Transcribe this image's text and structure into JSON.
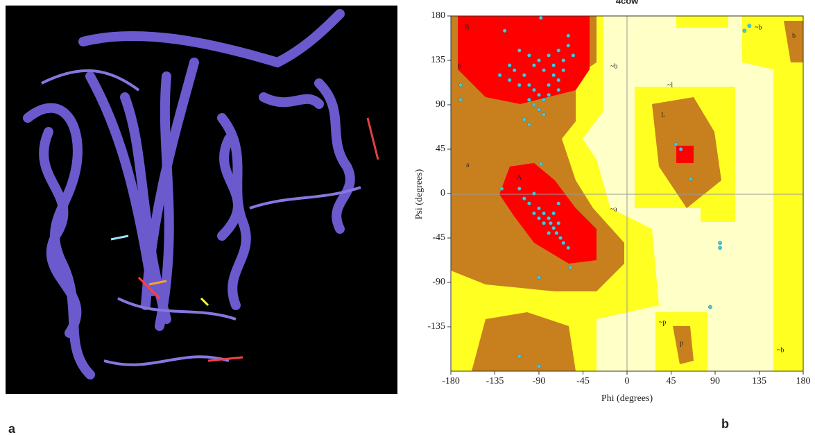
{
  "panels": [
    "a",
    "b"
  ],
  "chart_data": {
    "type": "scatter",
    "title": "4cow",
    "xlabel": "Phi (degrees)",
    "ylabel": "Psi (degrees)",
    "region_labels": [
      "B",
      "b",
      "A",
      "a",
      "L",
      "~l",
      "~b",
      "~a",
      "~p",
      "p",
      "b",
      "~b",
      "~b"
    ],
    "color": "#46c8dc",
    "x": [
      -125,
      -110,
      -100,
      -95,
      -90,
      -85,
      -80,
      -75,
      -70,
      -65,
      -60,
      -55,
      -60,
      -115,
      -105,
      -100,
      -95,
      -90,
      -85,
      -80,
      -75,
      -70,
      -65,
      -110,
      -120,
      -100,
      -95,
      -90,
      -85,
      -105,
      -100,
      -88,
      -120,
      -130,
      -80,
      -70,
      -110,
      -105,
      -100,
      -95,
      -90,
      -85,
      -80,
      -78,
      -75,
      -72,
      -70,
      -68,
      -65,
      -80,
      -85,
      -90,
      -75,
      -70,
      -95,
      -60,
      -88,
      -58,
      -128,
      50,
      55,
      65,
      95,
      95,
      85,
      120,
      125,
      -170,
      -90,
      -110,
      -90,
      -170
    ],
    "y": [
      165,
      145,
      140,
      130,
      135,
      125,
      140,
      130,
      145,
      135,
      150,
      140,
      160,
      125,
      120,
      110,
      105,
      100,
      95,
      110,
      120,
      115,
      125,
      110,
      115,
      95,
      90,
      85,
      80,
      75,
      70,
      178,
      130,
      120,
      100,
      105,
      5,
      -5,
      -10,
      0,
      -15,
      -20,
      -25,
      -30,
      -35,
      -40,
      -30,
      -45,
      -50,
      -40,
      -30,
      -25,
      -20,
      -10,
      -20,
      -55,
      30,
      -75,
      5,
      50,
      45,
      15,
      -50,
      -55,
      -115,
      165,
      170,
      95,
      -85,
      -165,
      -175,
      110
    ],
    "xlim": [
      -180,
      180
    ],
    "ylim": [
      -180,
      180
    ],
    "xticks": [
      -180,
      -135,
      -90,
      -45,
      0,
      45,
      90,
      135,
      180
    ],
    "yticks": [
      180,
      135,
      90,
      45,
      0,
      -45,
      -90,
      -135
    ]
  }
}
